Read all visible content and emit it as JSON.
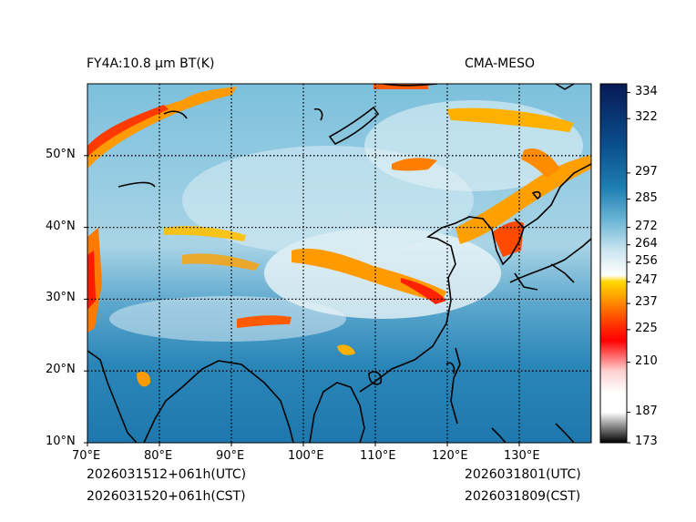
{
  "header": {
    "product": "FY4A:10.8 µm BT(K)",
    "source": "CMA-MESO"
  },
  "footer": {
    "init_utc": "2026031512+061h(UTC)",
    "init_cst": "2026031520+061h(CST)",
    "valid_utc": "2026031801(UTC)",
    "valid_cst": "2026031809(CST)"
  },
  "map": {
    "lon_range": [
      70,
      140
    ],
    "lat_range": [
      10,
      60
    ],
    "lon_ticks": [
      {
        "value": 70,
        "label": "70°E"
      },
      {
        "value": 80,
        "label": "80°E"
      },
      {
        "value": 90,
        "label": "90°E"
      },
      {
        "value": 100,
        "label": "100°E"
      },
      {
        "value": 110,
        "label": "110°E"
      },
      {
        "value": 120,
        "label": "120°E"
      },
      {
        "value": 130,
        "label": "130°E"
      }
    ],
    "lat_ticks": [
      {
        "value": 10,
        "label": "10°N"
      },
      {
        "value": 20,
        "label": "20°N"
      },
      {
        "value": 30,
        "label": "30°N"
      },
      {
        "value": 40,
        "label": "40°N"
      },
      {
        "value": 50,
        "label": "50°N"
      }
    ],
    "gridlines": "dotted"
  },
  "colorbar": {
    "range": [
      173,
      338
    ],
    "ticks": [
      334,
      322,
      297,
      285,
      272,
      264,
      256,
      247,
      237,
      225,
      210,
      187,
      173
    ],
    "stops": [
      {
        "v": 173,
        "c": "#000000"
      },
      {
        "v": 187,
        "c": "#ffffff"
      },
      {
        "v": 196,
        "c": "#ffffff"
      },
      {
        "v": 206,
        "c": "#ffd0d0"
      },
      {
        "v": 220,
        "c": "#ff0000"
      },
      {
        "v": 225,
        "c": "#ff2200"
      },
      {
        "v": 232,
        "c": "#ff5a00"
      },
      {
        "v": 240,
        "c": "#ffa000"
      },
      {
        "v": 247,
        "c": "#ffd800"
      },
      {
        "v": 250,
        "c": "#ffffff"
      },
      {
        "v": 262,
        "c": "#c8e3f0"
      },
      {
        "v": 275,
        "c": "#6db6d5"
      },
      {
        "v": 290,
        "c": "#1f7fb2"
      },
      {
        "v": 310,
        "c": "#0a4e8c"
      },
      {
        "v": 338,
        "c": "#081a55"
      }
    ]
  }
}
